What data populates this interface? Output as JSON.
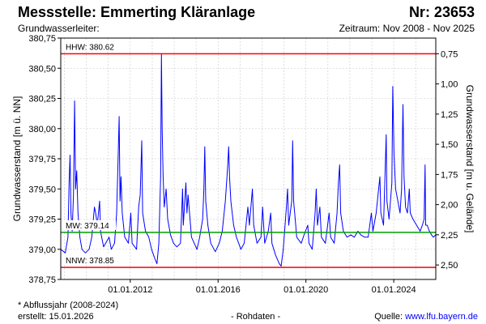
{
  "header": {
    "title": "Messstelle: Emmerting Kläranlage",
    "station_number": "Nr: 23653",
    "aquifer_label": "Grundwasserleiter:",
    "period": "Zeitraum: Nov 2008 - Nov 2025"
  },
  "footer": {
    "note": "* Abflussjahr (2008-2024)",
    "created": "erstellt:  15.01.2026",
    "raw_data": "- Rohdaten -",
    "source_prefix": "Quelle: ",
    "source_link": "www.lfu.bayern.de"
  },
  "colors": {
    "series": "#0000ff",
    "hhw_line": "#ff0000",
    "nnw_line": "#ff0000",
    "mw_line": "#00a000",
    "grid": "#c8c8c8"
  },
  "chart_data": {
    "type": "line",
    "ylabel": "Grundwasserstand [m ü. NN]",
    "y2label": "Grundwasserstand [m u. Gelände]",
    "ylim": [
      378.75,
      380.75
    ],
    "y_ticks": [
      "378,75",
      "379,00",
      "379,25",
      "379,50",
      "379,75",
      "380,00",
      "380,25",
      "380,50",
      "380,75"
    ],
    "y2_ticks": [
      "0,75",
      "1,00",
      "1,25",
      "1,50",
      "1,75",
      "2,00",
      "2,25",
      "2,50"
    ],
    "y2_surface_level": 381.37,
    "xlim": [
      "2008-11-01",
      "2025-11-30"
    ],
    "x_ticks": [
      "01.01.2012",
      "01.01.2016",
      "01.01.2020",
      "01.01.2024"
    ],
    "grid": true,
    "reference_lines": [
      {
        "label": "HHW: 380.62",
        "value": 380.62,
        "color": "#ff0000"
      },
      {
        "label": "MW: 379.14",
        "value": 379.14,
        "color": "#00a000"
      },
      {
        "label": "NNW: 378.85",
        "value": 378.85,
        "color": "#ff0000"
      }
    ],
    "series": [
      {
        "points": [
          [
            "2008-11-01",
            379.0
          ],
          [
            "2009-01-15",
            378.97
          ],
          [
            "2009-03-01",
            379.1
          ],
          [
            "2009-03-20",
            379.55
          ],
          [
            "2009-04-05",
            379.78
          ],
          [
            "2009-04-20",
            379.3
          ],
          [
            "2009-05-10",
            379.15
          ],
          [
            "2009-06-01",
            379.45
          ],
          [
            "2009-06-20",
            380.23
          ],
          [
            "2009-07-05",
            379.5
          ],
          [
            "2009-07-25",
            379.65
          ],
          [
            "2009-08-15",
            379.3
          ],
          [
            "2009-09-15",
            379.1
          ],
          [
            "2009-10-20",
            379.0
          ],
          [
            "2009-12-15",
            378.97
          ],
          [
            "2010-02-15",
            379.0
          ],
          [
            "2010-04-01",
            379.1
          ],
          [
            "2010-05-15",
            379.35
          ],
          [
            "2010-06-05",
            379.3
          ],
          [
            "2010-07-01",
            379.2
          ],
          [
            "2010-08-10",
            379.4
          ],
          [
            "2010-08-25",
            379.15
          ],
          [
            "2010-10-15",
            379.02
          ],
          [
            "2011-01-15",
            379.1
          ],
          [
            "2011-02-20",
            379.0
          ],
          [
            "2011-04-15",
            379.05
          ],
          [
            "2011-05-20",
            379.3
          ],
          [
            "2011-06-15",
            379.8
          ],
          [
            "2011-07-01",
            380.1
          ],
          [
            "2011-07-15",
            379.4
          ],
          [
            "2011-08-01",
            379.6
          ],
          [
            "2011-08-20",
            379.3
          ],
          [
            "2011-10-01",
            379.1
          ],
          [
            "2011-12-01",
            379.05
          ],
          [
            "2012-01-10",
            379.3
          ],
          [
            "2012-02-01",
            379.05
          ],
          [
            "2012-04-15",
            379.0
          ],
          [
            "2012-05-20",
            379.35
          ],
          [
            "2012-06-15",
            379.45
          ],
          [
            "2012-07-10",
            379.9
          ],
          [
            "2012-07-25",
            379.3
          ],
          [
            "2012-09-10",
            379.15
          ],
          [
            "2012-11-05",
            379.1
          ],
          [
            "2012-12-20",
            379.0
          ],
          [
            "2013-02-15",
            378.92
          ],
          [
            "2013-03-20",
            378.88
          ],
          [
            "2013-04-20",
            379.05
          ],
          [
            "2013-05-20",
            379.6
          ],
          [
            "2013-06-03",
            380.62
          ],
          [
            "2013-06-15",
            380.0
          ],
          [
            "2013-07-01",
            379.6
          ],
          [
            "2013-07-20",
            379.35
          ],
          [
            "2013-08-20",
            379.5
          ],
          [
            "2013-09-15",
            379.25
          ],
          [
            "2013-11-01",
            379.12
          ],
          [
            "2013-12-20",
            379.05
          ],
          [
            "2014-02-15",
            379.02
          ],
          [
            "2014-04-15",
            379.05
          ],
          [
            "2014-05-20",
            379.5
          ],
          [
            "2014-06-01",
            379.2
          ],
          [
            "2014-07-15",
            379.55
          ],
          [
            "2014-08-01",
            379.3
          ],
          [
            "2014-08-20",
            379.45
          ],
          [
            "2014-10-15",
            379.1
          ],
          [
            "2015-01-15",
            379.0
          ],
          [
            "2015-03-01",
            379.1
          ],
          [
            "2015-04-20",
            379.25
          ],
          [
            "2015-05-10",
            379.5
          ],
          [
            "2015-05-25",
            379.85
          ],
          [
            "2015-06-10",
            379.4
          ],
          [
            "2015-07-15",
            379.2
          ],
          [
            "2015-09-01",
            379.05
          ],
          [
            "2015-11-15",
            378.98
          ],
          [
            "2016-01-20",
            379.05
          ],
          [
            "2016-03-10",
            379.15
          ],
          [
            "2016-05-01",
            379.4
          ],
          [
            "2016-06-10",
            379.7
          ],
          [
            "2016-06-25",
            379.85
          ],
          [
            "2016-07-10",
            379.6
          ],
          [
            "2016-08-01",
            379.4
          ],
          [
            "2016-09-15",
            379.2
          ],
          [
            "2016-11-01",
            379.1
          ],
          [
            "2017-01-15",
            379.0
          ],
          [
            "2017-03-10",
            379.05
          ],
          [
            "2017-05-10",
            379.35
          ],
          [
            "2017-06-05",
            379.2
          ],
          [
            "2017-07-25",
            379.5
          ],
          [
            "2017-08-15",
            379.2
          ],
          [
            "2017-10-10",
            379.05
          ],
          [
            "2017-12-15",
            379.1
          ],
          [
            "2018-01-10",
            379.35
          ],
          [
            "2018-02-15",
            379.05
          ],
          [
            "2018-04-15",
            379.15
          ],
          [
            "2018-05-25",
            379.3
          ],
          [
            "2018-06-15",
            379.05
          ],
          [
            "2018-08-15",
            378.95
          ],
          [
            "2018-10-15",
            378.88
          ],
          [
            "2018-11-15",
            378.86
          ],
          [
            "2018-12-20",
            379.0
          ],
          [
            "2019-02-10",
            379.35
          ],
          [
            "2019-03-01",
            379.5
          ],
          [
            "2019-03-20",
            379.2
          ],
          [
            "2019-05-10",
            379.4
          ],
          [
            "2019-05-25",
            379.9
          ],
          [
            "2019-06-10",
            379.4
          ],
          [
            "2019-07-15",
            379.2
          ],
          [
            "2019-08-01",
            379.1
          ],
          [
            "2019-10-15",
            379.05
          ],
          [
            "2019-12-01",
            379.12
          ],
          [
            "2020-02-01",
            379.2
          ],
          [
            "2020-02-20",
            379.05
          ],
          [
            "2020-04-15",
            379.0
          ],
          [
            "2020-06-01",
            379.3
          ],
          [
            "2020-06-20",
            379.5
          ],
          [
            "2020-07-10",
            379.2
          ],
          [
            "2020-08-20",
            379.35
          ],
          [
            "2020-09-15",
            379.1
          ],
          [
            "2020-11-20",
            379.05
          ],
          [
            "2021-01-20",
            379.3
          ],
          [
            "2021-02-15",
            379.1
          ],
          [
            "2021-04-15",
            379.05
          ],
          [
            "2021-06-01",
            379.3
          ],
          [
            "2021-06-25",
            379.55
          ],
          [
            "2021-07-15",
            379.7
          ],
          [
            "2021-08-01",
            379.3
          ],
          [
            "2021-09-15",
            379.15
          ],
          [
            "2021-11-15",
            379.1
          ],
          [
            "2022-01-15",
            379.12
          ],
          [
            "2022-03-15",
            379.1
          ],
          [
            "2022-05-15",
            379.15
          ],
          [
            "2022-07-01",
            379.12
          ],
          [
            "2022-09-01",
            379.1
          ],
          [
            "2022-11-01",
            379.1
          ],
          [
            "2022-12-25",
            379.3
          ],
          [
            "2023-01-20",
            379.15
          ],
          [
            "2023-03-15",
            379.3
          ],
          [
            "2023-04-15",
            379.45
          ],
          [
            "2023-05-15",
            379.6
          ],
          [
            "2023-06-01",
            379.3
          ],
          [
            "2023-07-15",
            379.2
          ],
          [
            "2023-08-28",
            379.95
          ],
          [
            "2023-09-10",
            379.4
          ],
          [
            "2023-10-15",
            379.25
          ],
          [
            "2023-12-01",
            379.55
          ],
          [
            "2023-12-15",
            380.35
          ],
          [
            "2024-01-05",
            379.8
          ],
          [
            "2024-02-01",
            379.5
          ],
          [
            "2024-03-10",
            379.4
          ],
          [
            "2024-04-15",
            379.3
          ],
          [
            "2024-05-10",
            379.5
          ],
          [
            "2024-06-03",
            380.2
          ],
          [
            "2024-06-20",
            379.6
          ],
          [
            "2024-07-15",
            379.35
          ],
          [
            "2024-08-15",
            379.3
          ],
          [
            "2024-09-15",
            379.5
          ],
          [
            "2024-10-01",
            379.3
          ],
          [
            "2024-11-15",
            379.25
          ],
          [
            "2025-01-15",
            379.2
          ],
          [
            "2025-03-15",
            379.15
          ],
          [
            "2025-04-20",
            379.2
          ],
          [
            "2025-05-20",
            379.25
          ],
          [
            "2025-06-05",
            379.7
          ],
          [
            "2025-06-15",
            379.2
          ],
          [
            "2025-07-10",
            379.2
          ],
          [
            "2025-08-15",
            379.15
          ],
          [
            "2025-09-20",
            379.12
          ],
          [
            "2025-10-20",
            379.1
          ],
          [
            "2025-11-30",
            379.12
          ]
        ]
      }
    ]
  }
}
